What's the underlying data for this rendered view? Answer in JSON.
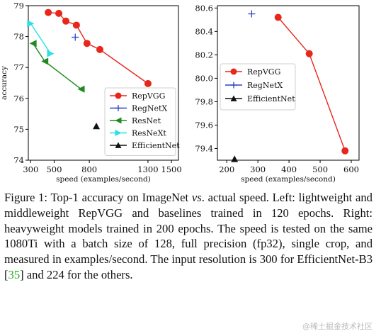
{
  "chart_data": [
    {
      "type": "line",
      "xlabel": "speed (examples/second)",
      "ylabel": "accuracy",
      "xlim": [
        280,
        1560
      ],
      "ylim": [
        74,
        79
      ],
      "xticks": [
        300,
        500,
        800,
        1300,
        1500
      ],
      "yticks": [
        74,
        75,
        76,
        77,
        78,
        79
      ],
      "legend_position": "right",
      "series": [
        {
          "name": "RepVGG",
          "color": "#e8261b",
          "marker": "circle",
          "x": [
            450,
            540,
            600,
            690,
            780,
            890,
            1300
          ],
          "y": [
            78.78,
            78.75,
            78.5,
            78.37,
            77.78,
            77.58,
            76.48
          ]
        },
        {
          "name": "RegNetX",
          "color": "#2b43c8",
          "marker": "plus",
          "x": [
            680
          ],
          "y": [
            77.98
          ]
        },
        {
          "name": "ResNet",
          "color": "#1f8a1f",
          "marker": "triangle-left",
          "x": [
            320,
            420,
            730
          ],
          "y": [
            77.78,
            77.2,
            76.3
          ]
        },
        {
          "name": "ResNeXt",
          "color": "#2ae0e6",
          "marker": "triangle-right",
          "x": [
            300,
            470
          ],
          "y": [
            78.42,
            77.45
          ]
        },
        {
          "name": "EfficientNet",
          "color": "#111111",
          "marker": "triangle-up",
          "x": [
            860
          ],
          "y": [
            75.1
          ]
        }
      ]
    },
    {
      "type": "line",
      "xlabel": "speed (examples/second)",
      "ylabel": "",
      "xlim": [
        170,
        625
      ],
      "ylim": [
        79.3,
        80.62
      ],
      "xticks": [
        200,
        300,
        400,
        500,
        600
      ],
      "yticks": [
        79.4,
        79.6,
        79.8,
        80.0,
        80.2,
        80.4,
        80.6
      ],
      "legend_position": "upper-left",
      "series": [
        {
          "name": "RepVGG",
          "color": "#e8261b",
          "marker": "circle",
          "x": [
            365,
            465,
            580
          ],
          "y": [
            80.52,
            80.21,
            79.38
          ]
        },
        {
          "name": "RegNetX",
          "color": "#2b43c8",
          "marker": "plus",
          "x": [
            280
          ],
          "y": [
            80.55
          ]
        },
        {
          "name": "EfficientNet",
          "color": "#111111",
          "marker": "triangle-up",
          "x": [
            225
          ],
          "y": [
            79.31
          ]
        }
      ]
    }
  ],
  "caption": {
    "parts": [
      {
        "text": "Figure 1: Top-1 accuracy on ImageNet "
      },
      {
        "text": "vs",
        "style": "italic"
      },
      {
        "text": ". actual speed. Left: lightweight and middleweight RepVGG and baselines trained in 120 epochs. Right: heavyweight models trained in 200 epochs. The speed is tested on the same 1080Ti with a batch size of 128, full precision (fp32), single crop, and measured in examples/second. The input resolution is 300 for EfficientNet-B3 ["
      },
      {
        "text": "35",
        "style": "cite"
      },
      {
        "text": "] and 224 for the others."
      }
    ]
  },
  "watermark": "@稀土掘金技术社区"
}
